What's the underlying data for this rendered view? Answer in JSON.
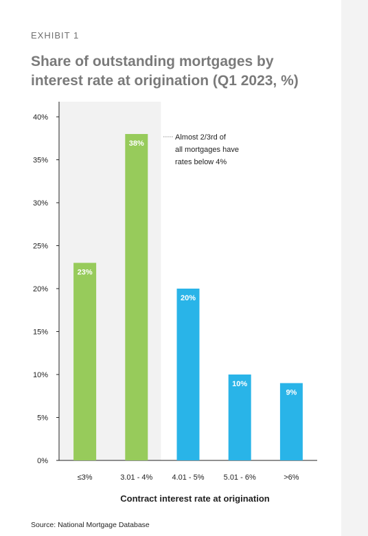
{
  "exhibit_label": "EXHIBIT 1",
  "source": "Source: National Mortgage Database",
  "chart_data": {
    "type": "bar",
    "title": "Share of outstanding mortgages by interest rate at origination (Q1 2023, %)",
    "xlabel": "Contract interest rate at origination",
    "ylabel": "",
    "categories": [
      "≤3%",
      "3.01 - 4%",
      "4.01 - 5%",
      "5.01 - 6%",
      ">6%"
    ],
    "values": [
      23,
      38,
      20,
      10,
      9
    ],
    "data_labels": [
      "23%",
      "38%",
      "20%",
      "10%",
      "9%"
    ],
    "bar_colors": [
      "#97cb5b",
      "#97cb5b",
      "#29b4e8",
      "#29b4e8",
      "#29b4e8"
    ],
    "highlight_color": "#f2f2f2",
    "highlight_categories": [
      "≤3%",
      "3.01 - 4%"
    ],
    "ylim": [
      0,
      40
    ],
    "yticks": [
      0,
      5,
      10,
      15,
      20,
      25,
      30,
      35,
      40
    ],
    "ytick_labels": [
      "0%",
      "5%",
      "10%",
      "15%",
      "20%",
      "25%",
      "30%",
      "35%",
      "40%"
    ],
    "annotation": [
      "Almost 2/3rd of",
      "all mortgages have",
      "rates below 4%"
    ],
    "grid": false
  }
}
